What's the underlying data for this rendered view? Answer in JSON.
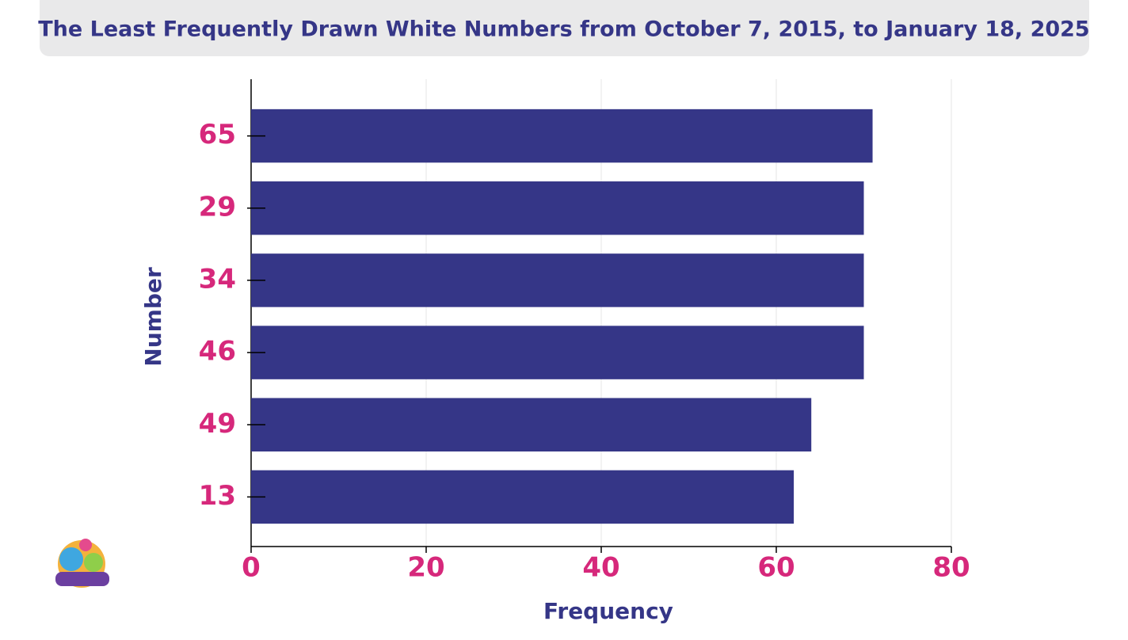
{
  "chart_data": {
    "type": "bar",
    "orientation": "horizontal",
    "title": "The Least Frequently Drawn White Numbers from October 7, 2015, to January 18, 2025",
    "x_label": "Frequency",
    "y_label": "Number",
    "categories": [
      "65",
      "29",
      "34",
      "46",
      "49",
      "13"
    ],
    "values": [
      71,
      70,
      70,
      70,
      64,
      62
    ],
    "color": "#353687",
    "xlim": [
      0,
      80
    ],
    "xticks": [
      0,
      20,
      40,
      60,
      80
    ],
    "grid": true
  }
}
